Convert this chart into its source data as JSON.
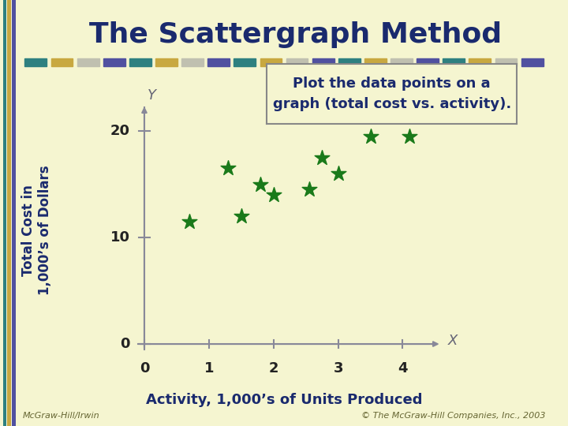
{
  "title": "The Scattergraph Method",
  "annotation_text": "Plot the data points on a\ngraph (total cost vs. activity).",
  "xlabel": "Activity, 1,000’s of Units Produced",
  "ylabel": "Total Cost in\n1,000’s of Dollars",
  "x_label_axis": "X",
  "y_label_axis": "Y",
  "xlim": [
    0,
    4.6
  ],
  "ylim": [
    0,
    22
  ],
  "xticks": [
    0,
    1,
    2,
    3,
    4
  ],
  "yticks": [
    0,
    10,
    20
  ],
  "scatter_x": [
    0.7,
    1.3,
    1.5,
    1.8,
    2.0,
    2.55,
    2.75,
    3.0,
    3.5,
    4.1
  ],
  "scatter_y": [
    11.5,
    16.5,
    12.0,
    15.0,
    14.0,
    14.5,
    17.5,
    16.0,
    19.5,
    19.5
  ],
  "scatter_color": "#1a7a1a",
  "marker_size": 200,
  "background_color": "#f5f5d0",
  "title_color": "#1a2a6e",
  "axis_color": "#888899",
  "tick_label_color": "#222222",
  "annotation_box_color": "#f5f5d0",
  "annotation_box_edge": "#888888",
  "annotation_text_color": "#1a2a6e",
  "title_fontsize": 26,
  "axis_label_fontsize": 12,
  "tick_fontsize": 13,
  "annotation_fontsize": 13,
  "footnote_left": "McGraw-Hill/Irwin",
  "footnote_right": "© The McGraw-Hill Companies, Inc., 2003",
  "strip_colors": [
    "#2e8080",
    "#c8a840",
    "#c0c0b0",
    "#5050a0"
  ],
  "left_strip_colors": [
    "#2e8080",
    "#c8a840",
    "#5050a0"
  ]
}
